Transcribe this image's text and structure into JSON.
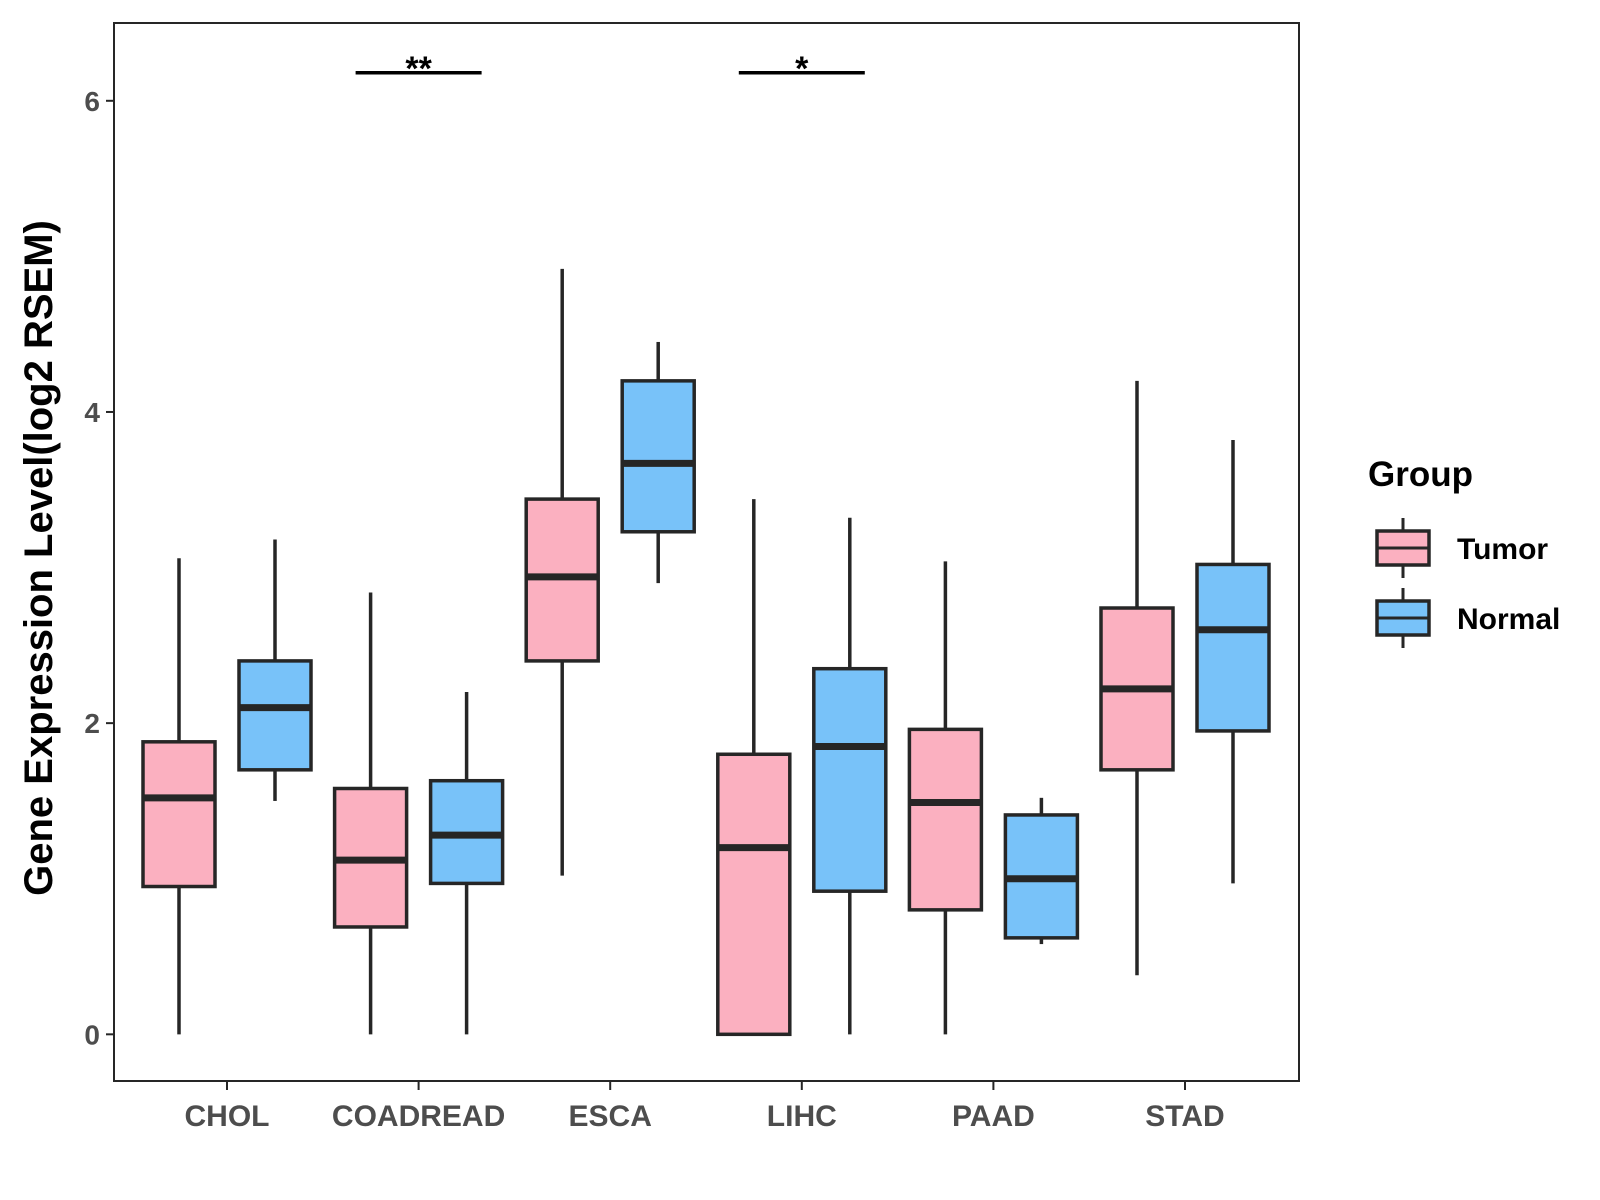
{
  "chart_data": {
    "type": "boxplot",
    "title": "",
    "xlabel": "",
    "ylabel": "Gene Expression Level(log2 RSEM)",
    "ylim": [
      -0.3,
      6.5
    ],
    "yticks": [
      0,
      2,
      4,
      6
    ],
    "grid": false,
    "legend": {
      "title": "Group",
      "placement": "right",
      "entries": [
        "Tumor",
        "Normal"
      ]
    },
    "colors": {
      "Tumor": "#fbb0c0",
      "Normal": "#78c2f9",
      "stroke": "#262626"
    },
    "categories": [
      "CHOL",
      "COADREAD",
      "ESCA",
      "LIHC",
      "PAAD",
      "STAD"
    ],
    "series": [
      {
        "name": "Tumor",
        "boxes": [
          {
            "min": 0.0,
            "q1": 0.95,
            "median": 1.52,
            "q3": 1.88,
            "max": 3.06
          },
          {
            "min": 0.0,
            "q1": 0.69,
            "median": 1.12,
            "q3": 1.58,
            "max": 2.84
          },
          {
            "min": 1.02,
            "q1": 2.4,
            "median": 2.94,
            "q3": 3.44,
            "max": 4.92
          },
          {
            "min": 0.0,
            "q1": 0.0,
            "median": 1.2,
            "q3": 1.8,
            "max": 3.44
          },
          {
            "min": 0.0,
            "q1": 0.8,
            "median": 1.49,
            "q3": 1.96,
            "max": 3.04
          },
          {
            "min": 0.38,
            "q1": 1.7,
            "median": 2.22,
            "q3": 2.74,
            "max": 4.2
          }
        ]
      },
      {
        "name": "Normal",
        "boxes": [
          {
            "min": 1.5,
            "q1": 1.7,
            "median": 2.1,
            "q3": 2.4,
            "max": 3.18
          },
          {
            "min": 0.0,
            "q1": 0.97,
            "median": 1.28,
            "q3": 1.63,
            "max": 2.2
          },
          {
            "min": 2.9,
            "q1": 3.23,
            "median": 3.67,
            "q3": 4.2,
            "max": 4.45
          },
          {
            "min": 0.0,
            "q1": 0.92,
            "median": 1.85,
            "q3": 2.35,
            "max": 3.32
          },
          {
            "min": 0.58,
            "q1": 0.62,
            "median": 1.0,
            "q3": 1.41,
            "max": 1.52
          },
          {
            "min": 0.97,
            "q1": 1.95,
            "median": 2.6,
            "q3": 3.02,
            "max": 3.82
          }
        ]
      }
    ],
    "annotations": [
      {
        "category": "COADREAD",
        "label": "**",
        "y": 6.18
      },
      {
        "category": "LIHC",
        "label": "*",
        "y": 6.18
      }
    ]
  }
}
